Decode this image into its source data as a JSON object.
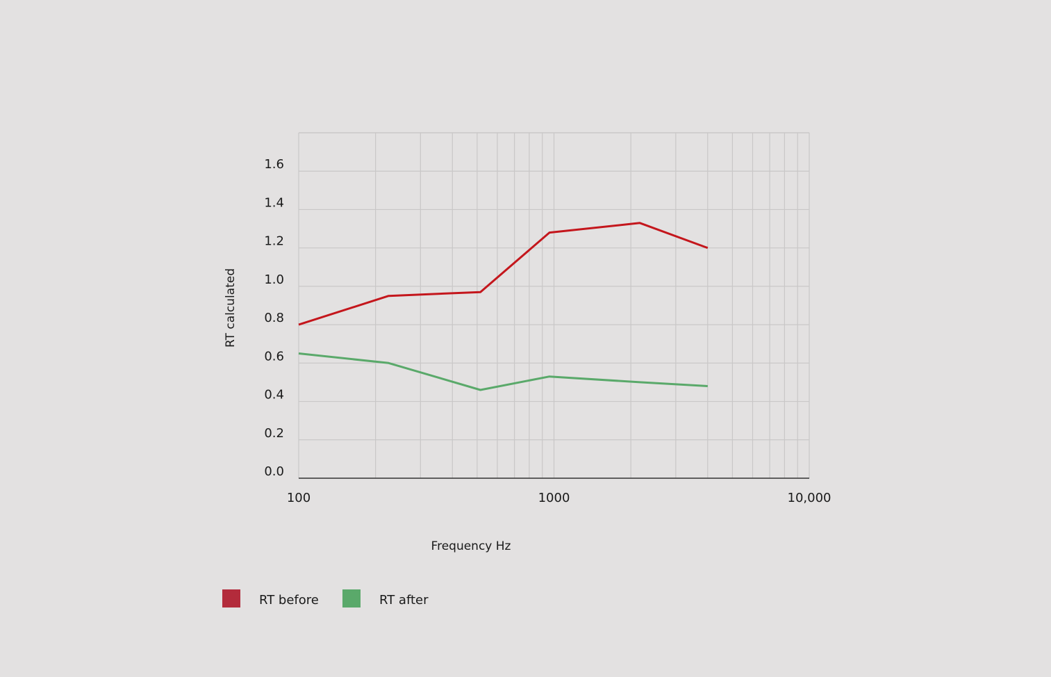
{
  "chart_data": {
    "type": "line",
    "xscale": "log",
    "xlim": [
      100,
      10000
    ],
    "ylim": [
      0,
      1.8
    ],
    "grid": true,
    "xlabel": "Frequency Hz",
    "ylabel": "RT calculated",
    "x_tick_labels": [
      {
        "value": 100,
        "label": "100"
      },
      {
        "value": 1000,
        "label": "1000"
      },
      {
        "value": 10000,
        "label": "10,000"
      }
    ],
    "y_tick_labels": [
      {
        "value": 0.0,
        "label": "0.0"
      },
      {
        "value": 0.2,
        "label": "0.2"
      },
      {
        "value": 0.4,
        "label": "0.4"
      },
      {
        "value": 0.6,
        "label": "0.6"
      },
      {
        "value": 0.8,
        "label": "0.8"
      },
      {
        "value": 1.0,
        "label": "1.0"
      },
      {
        "value": 1.2,
        "label": "1.2"
      },
      {
        "value": 1.4,
        "label": "1.4"
      },
      {
        "value": 1.6,
        "label": "1.6"
      }
    ],
    "x": [
      100,
      225,
      515,
      960,
      2170,
      4000
    ],
    "series": [
      {
        "name": "RT before",
        "color": "#c4161c",
        "legend_color": "#b32b3b",
        "values": [
          0.8,
          0.95,
          0.97,
          1.28,
          1.33,
          1.2
        ]
      },
      {
        "name": "RT after",
        "color": "#5aa96a",
        "legend_color": "#5aa96a",
        "values": [
          0.65,
          0.6,
          0.46,
          0.53,
          0.5,
          0.48
        ]
      }
    ],
    "legend_position": "bottom-left"
  }
}
